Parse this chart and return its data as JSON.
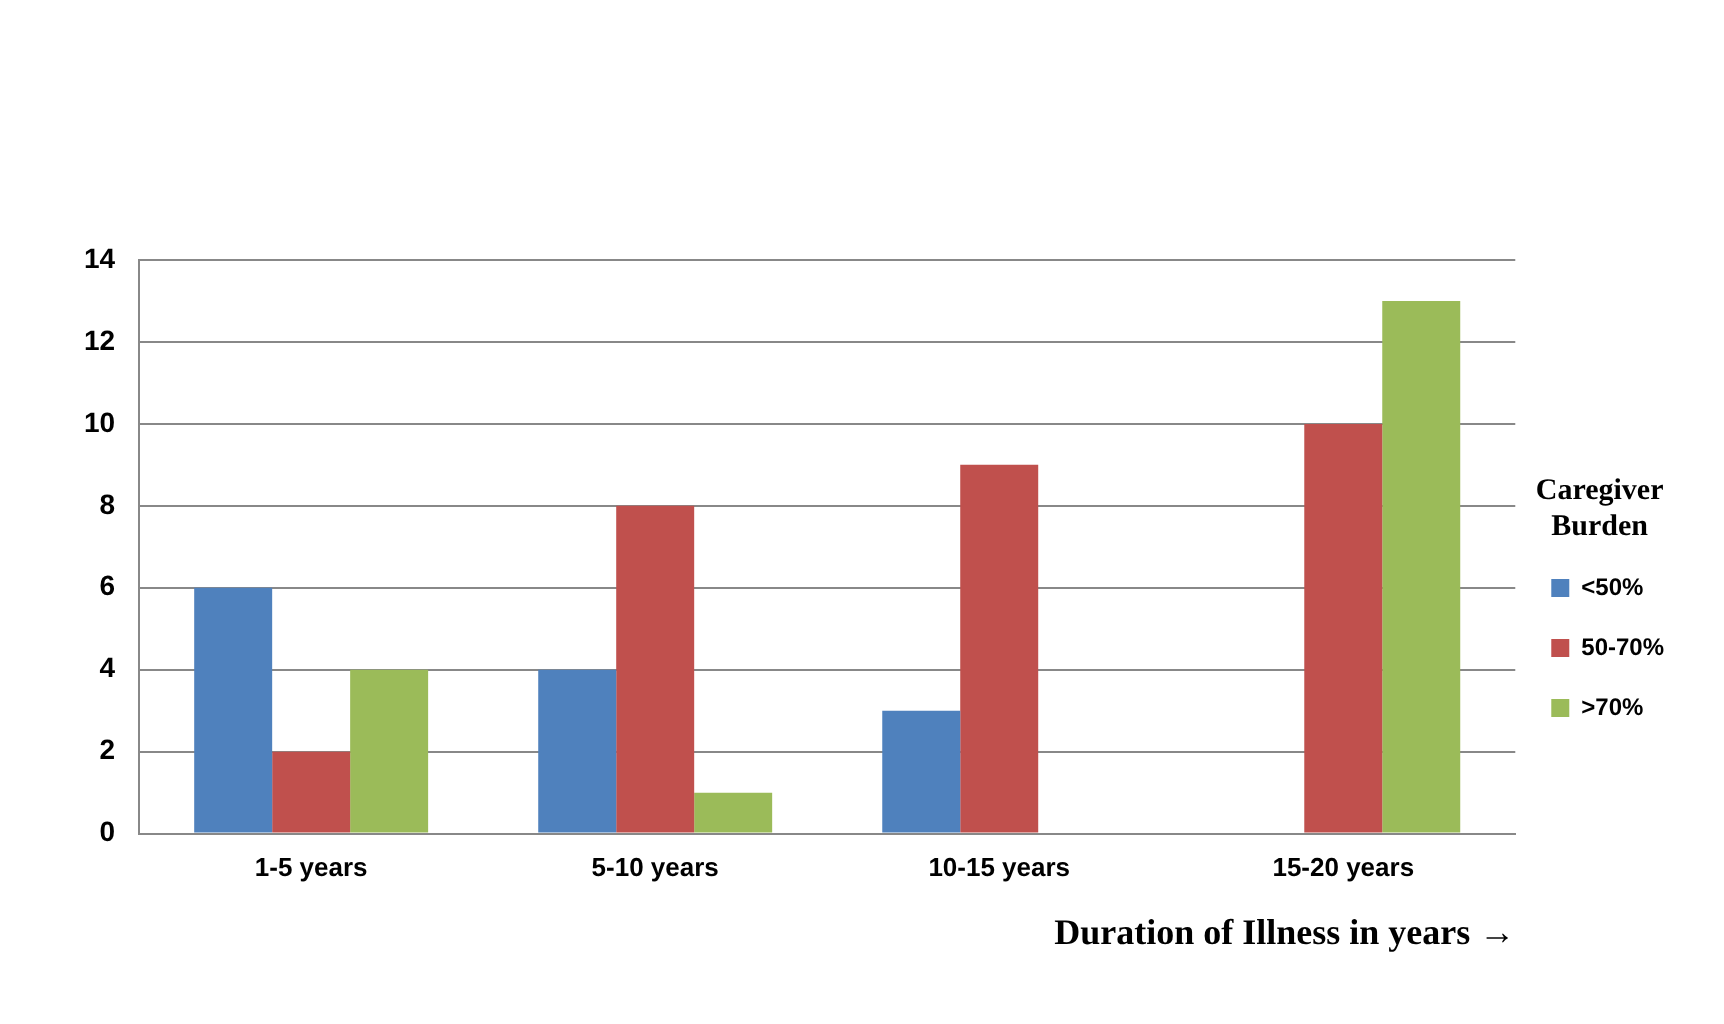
{
  "chart_data": {
    "type": "bar",
    "xlabel": "Duration of Illness in years →",
    "legend_title": "Caregiver Burden",
    "categories": [
      "1-5 years",
      "5-10 years",
      "10-15 years",
      "15-20 years"
    ],
    "series": [
      {
        "name": "<50%",
        "color": "#4f81bd",
        "values": [
          6,
          4,
          3,
          0
        ]
      },
      {
        "name": "50-70%",
        "color": "#c0504d",
        "values": [
          2,
          8,
          9,
          10
        ]
      },
      {
        "name": ">70%",
        "color": "#9bbb59",
        "values": [
          4,
          1,
          0,
          13
        ]
      }
    ],
    "ylim": [
      0,
      14
    ],
    "yticks": [
      0,
      2,
      4,
      6,
      8,
      10,
      12,
      14
    ],
    "grid": "y",
    "legend": "right"
  }
}
